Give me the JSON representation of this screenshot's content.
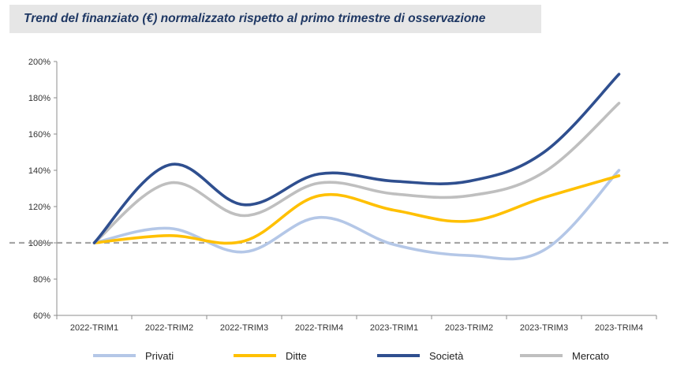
{
  "chart_data": {
    "type": "line",
    "title": "Trend del finanziato (€) normalizzato rispetto al primo trimestre di osservazione",
    "categories": [
      "2022-TRIM1",
      "2022-TRIM2",
      "2022-TRIM3",
      "2022-TRIM4",
      "2023-TRIM1",
      "2023-TRIM2",
      "2023-TRIM3",
      "2023-TRIM4"
    ],
    "yticks": [
      "60%",
      "80%",
      "100%",
      "120%",
      "140%",
      "160%",
      "180%",
      "200%"
    ],
    "ylim": [
      60,
      200
    ],
    "reference_line": 100,
    "grid": false,
    "legend_position": "bottom",
    "series": [
      {
        "name": "Privati",
        "color": "#b4c7e7",
        "values": [
          100,
          108,
          95,
          114,
          99,
          93,
          96,
          140
        ]
      },
      {
        "name": "Ditte",
        "color": "#ffc000",
        "values": [
          100,
          104,
          101,
          126,
          118,
          112,
          125,
          137
        ]
      },
      {
        "name": "Società",
        "color": "#2f4f8f",
        "values": [
          100,
          143,
          121,
          138,
          134,
          134,
          150,
          193
        ]
      },
      {
        "name": "Mercato",
        "color": "#bfbfbf",
        "values": [
          100,
          133,
          115,
          133,
          127,
          126,
          139,
          177
        ]
      }
    ]
  }
}
